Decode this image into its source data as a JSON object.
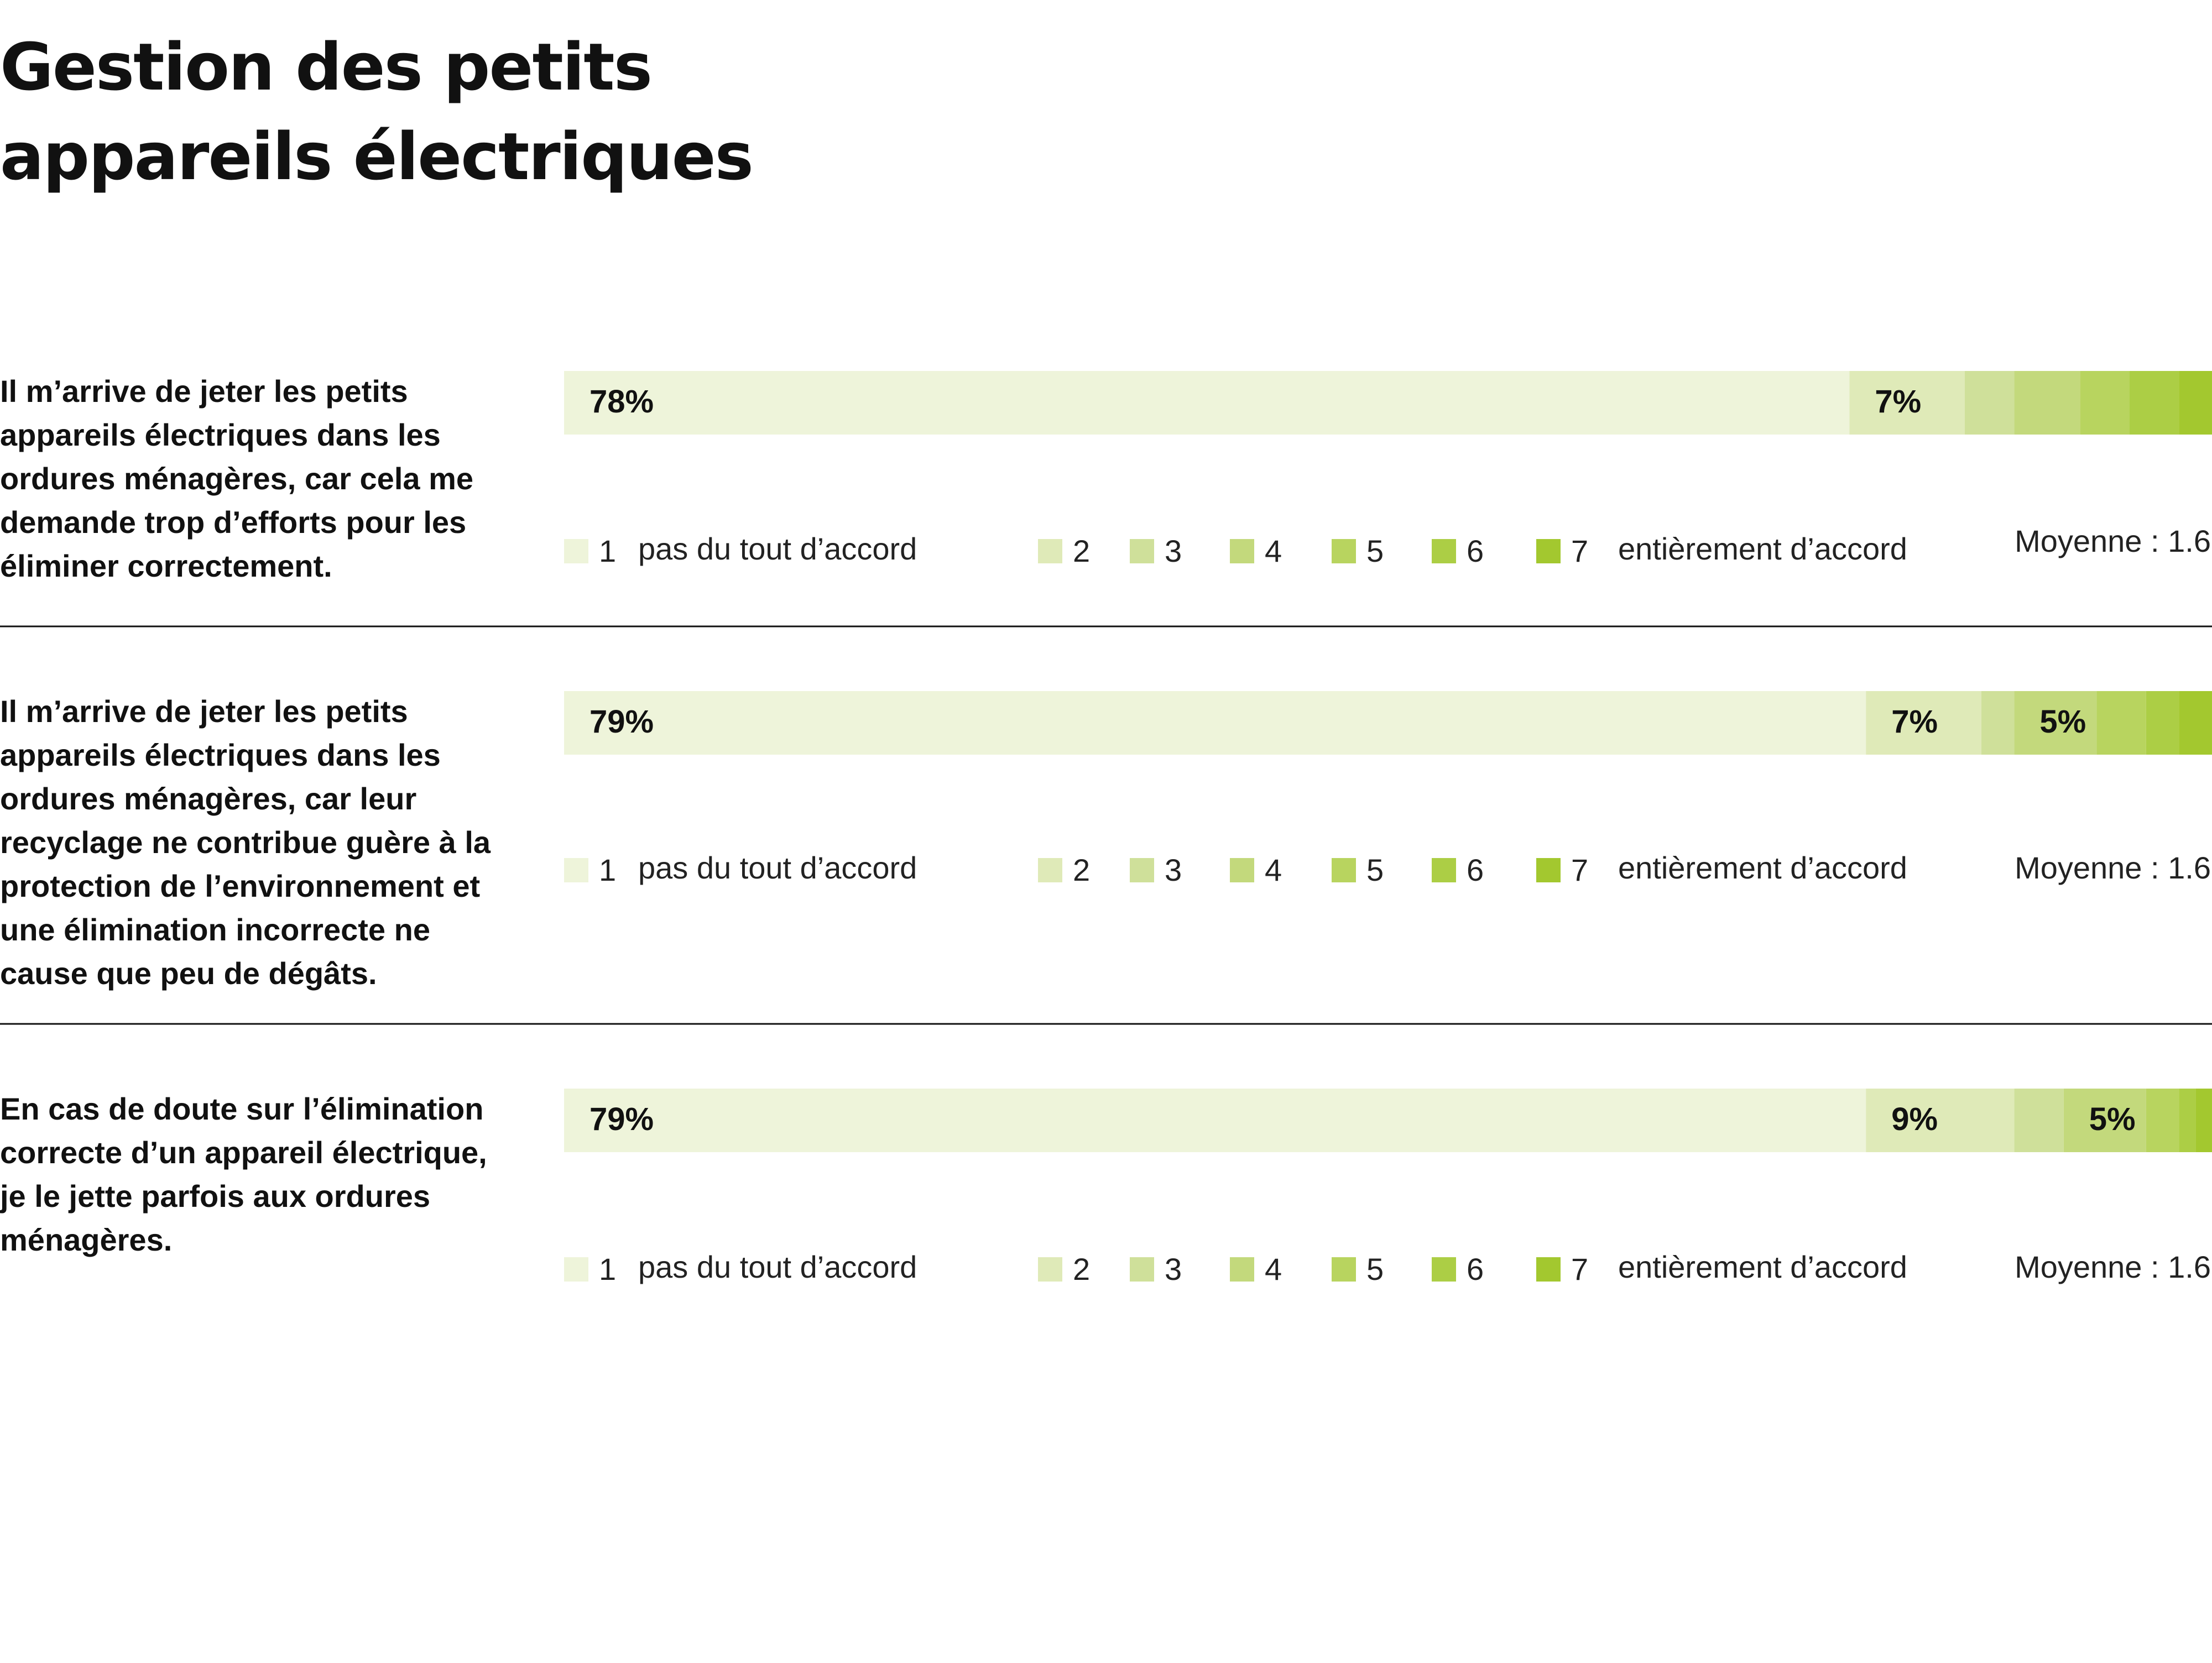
{
  "chart_data": {
    "type": "stacked-bar",
    "title": "Gestion des petits appareils électriques",
    "categories": [
      "Il m’arrive de jeter les petits appareils électriques dans les ordures ménagères, car cela me demande trop d’efforts pour les éliminer correctement.",
      "Il m’arrive de jeter les petits appareils électriques dans les ordures ménagères, car leur recyclage ne contribue guère à la protection de l’environnement et une élimination incorrecte ne cause que peu de dégâts.",
      "En cas de doute sur l’élimination correcte d’un appareil électrique, je le jette parfois aux ordures ménagères."
    ],
    "xlim": [
      0,
      100
    ],
    "series": [
      {
        "name": "1",
        "color": "#eef4da",
        "values": [
          78,
          79,
          79
        ],
        "value_labels": [
          "78%",
          "79%",
          "79%"
        ]
      },
      {
        "name": "2",
        "color": "#dfeab8",
        "values": [
          7,
          7,
          9
        ],
        "value_labels": [
          "7%",
          "7%",
          "9%"
        ]
      },
      {
        "name": "3",
        "color": "#cfe09a",
        "values": [
          3,
          2,
          3
        ]
      },
      {
        "name": "4",
        "color": "#c3d97c",
        "values": [
          4,
          5,
          5
        ],
        "value_labels": [
          null,
          "5%",
          "5%"
        ]
      },
      {
        "name": "5",
        "color": "#b8d45f",
        "values": [
          3,
          3,
          2
        ]
      },
      {
        "name": "6",
        "color": "#acce45",
        "values": [
          3,
          2,
          1
        ]
      },
      {
        "name": "7",
        "color": "#a3c82f",
        "values": [
          2,
          2,
          1
        ]
      }
    ],
    "scale_labels": [
      "pas du tout d’accord",
      "entièrement d’accord"
    ],
    "mean_label": "Moyenne :",
    "means": [
      1.6,
      1.6,
      1.6
    ]
  }
}
